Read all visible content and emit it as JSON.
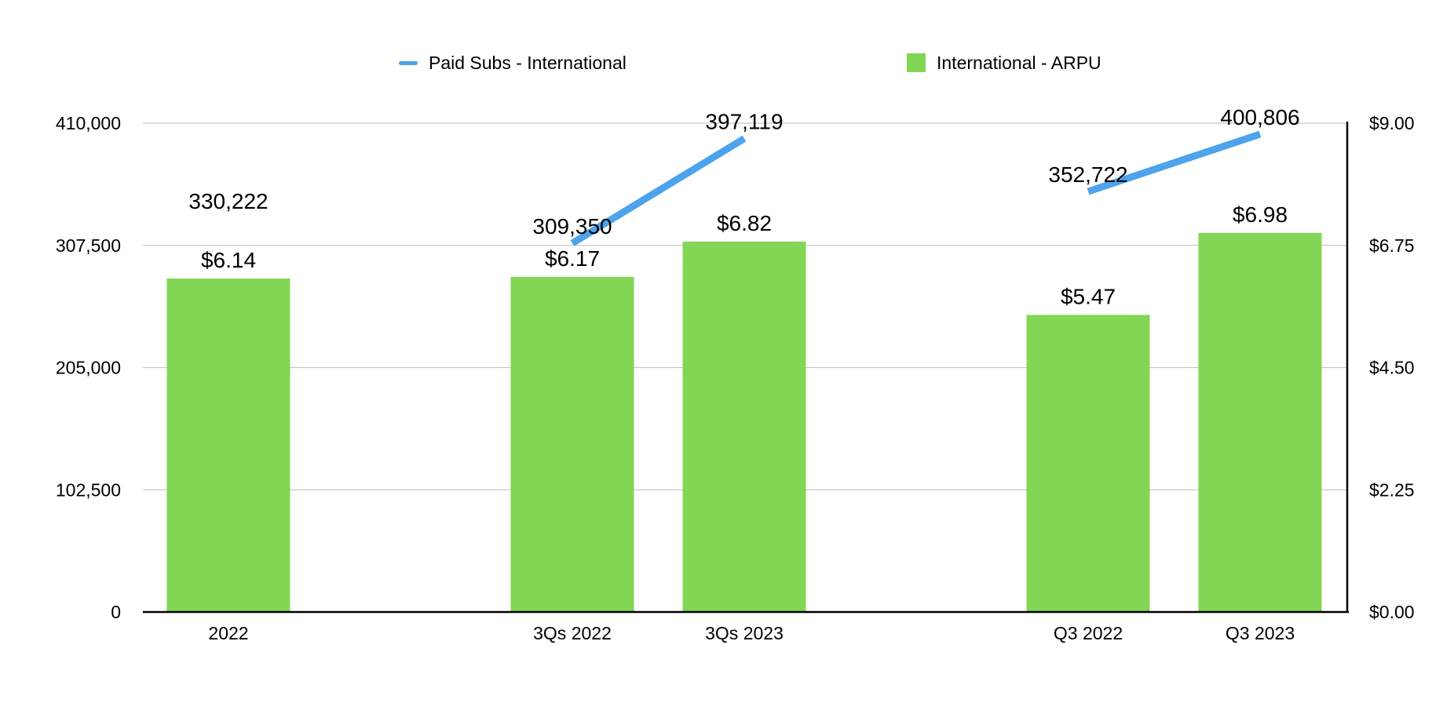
{
  "legend": {
    "line_label": "Paid Subs - International",
    "bar_label": "International - ARPU"
  },
  "colors": {
    "line": "#4da3ec",
    "bar": "#82d654",
    "grid": "#c8c8c8",
    "axis": "#000000"
  },
  "chart_data": {
    "type": "bar",
    "categories": [
      "2022",
      "3Qs 2022",
      "3Qs 2023",
      "Q3 2022",
      "Q3 2023"
    ],
    "category_slots": [
      0,
      2,
      3,
      5,
      6
    ],
    "series": [
      {
        "name": "International - ARPU",
        "type": "bar",
        "axis": "right",
        "values": [
          6.14,
          6.17,
          6.82,
          5.47,
          6.98
        ],
        "labels": [
          "$6.14",
          "$6.17",
          "$6.82",
          "$5.47",
          "$6.98"
        ]
      },
      {
        "name": "Paid Subs - International",
        "type": "line",
        "axis": "left",
        "values": [
          330222,
          309350,
          397119,
          352722,
          400806
        ],
        "labels": [
          "330,222",
          "309,350",
          "397,119",
          "352,722",
          "400,806"
        ],
        "line_segments": [
          [
            1,
            2
          ],
          [
            3,
            4
          ]
        ]
      }
    ],
    "y_left": {
      "min": 0,
      "max": 410000,
      "ticks": [
        0,
        102500,
        205000,
        307500,
        410000
      ],
      "tick_labels": [
        "0",
        "102,500",
        "205,000",
        "307,500",
        "410,000"
      ]
    },
    "y_right": {
      "min": 0,
      "max": 9,
      "ticks": [
        0,
        2.25,
        4.5,
        6.75,
        9
      ],
      "tick_labels": [
        "$0.00",
        "$2.25",
        "$4.50",
        "$6.75",
        "$9.00"
      ]
    },
    "grid": true,
    "legend_position": "top-center"
  }
}
